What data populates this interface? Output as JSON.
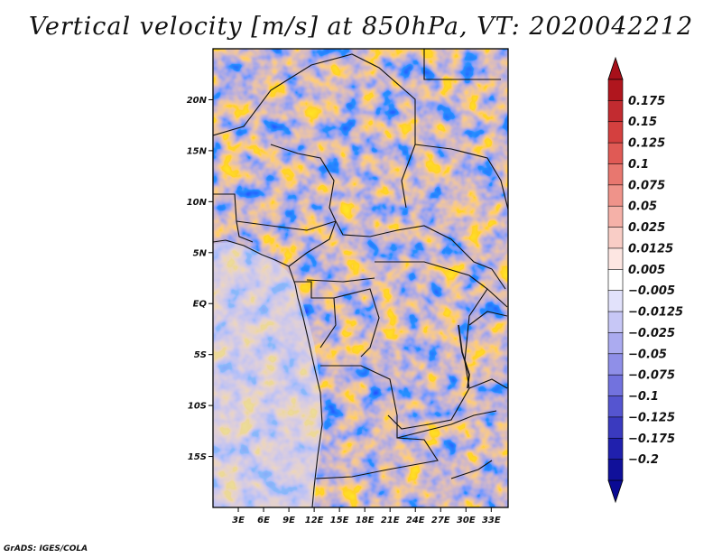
{
  "title": "Vertical velocity [m/s] at 850hPa, VT: 2020042212",
  "credit": "GrADS: IGES/COLA",
  "map": {
    "lon_range": [
      0,
      35
    ],
    "lat_range": [
      -20,
      25
    ],
    "lat_ticks": [
      {
        "value": 20,
        "label": "20N"
      },
      {
        "value": 15,
        "label": "15N"
      },
      {
        "value": 10,
        "label": "10N"
      },
      {
        "value": 5,
        "label": "5N"
      },
      {
        "value": 0,
        "label": "EQ"
      },
      {
        "value": -5,
        "label": "5S"
      },
      {
        "value": -10,
        "label": "10S"
      },
      {
        "value": -15,
        "label": "15S"
      }
    ],
    "lon_ticks": [
      {
        "value": 3,
        "label": "3E"
      },
      {
        "value": 6,
        "label": "6E"
      },
      {
        "value": 9,
        "label": "9E"
      },
      {
        "value": 12,
        "label": "12E"
      },
      {
        "value": 15,
        "label": "15E"
      },
      {
        "value": 18,
        "label": "18E"
      },
      {
        "value": 21,
        "label": "21E"
      },
      {
        "value": 24,
        "label": "24E"
      },
      {
        "value": 27,
        "label": "27E"
      },
      {
        "value": 30,
        "label": "30E"
      },
      {
        "value": 33,
        "label": "33E"
      }
    ]
  },
  "colorbar": {
    "levels": [
      "0.175",
      "0.15",
      "0.125",
      "0.1",
      "0.075",
      "0.05",
      "0.025",
      "0.0125",
      "0.005",
      "−0.005",
      "−0.0125",
      "−0.025",
      "−0.05",
      "−0.075",
      "−0.1",
      "−0.125",
      "−0.175",
      "−0.2"
    ],
    "colors": [
      "#b0161e",
      "#c22b30",
      "#d4403f",
      "#e05a55",
      "#e8776f",
      "#ef938a",
      "#f5b1a8",
      "#f9cdc6",
      "#fde6e2",
      "#ffffff",
      "#e2e2fb",
      "#c7c7f6",
      "#ababf0",
      "#8f8fe8",
      "#7272de",
      "#5555d0",
      "#3a3abf",
      "#2020ad",
      "#10109a"
    ],
    "arrow_top_color": "#a8101a",
    "arrow_bottom_color": "#0a0a94"
  }
}
